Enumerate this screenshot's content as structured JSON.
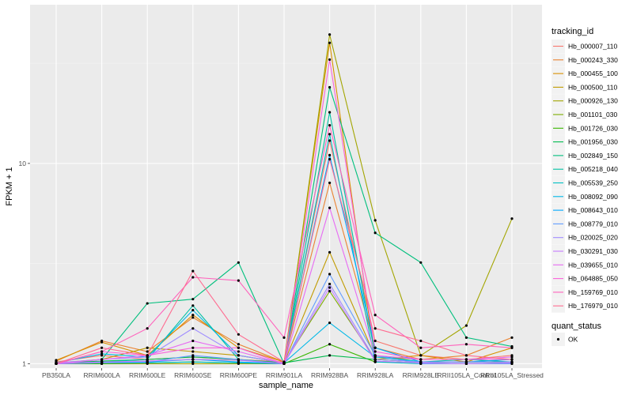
{
  "chart_data": {
    "type": "line",
    "xlabel": "sample_name",
    "ylabel": "FPKM + 1",
    "y_scale": "log10",
    "ylim": [
      0.95,
      62
    ],
    "y_ticks": [
      1,
      10
    ],
    "grid": true,
    "legend_position": "right",
    "categories": [
      "PB350LA",
      "RRIM600LA",
      "RRIM600LE",
      "RRIM600SE",
      "RRIM600PE",
      "RRIM901LA",
      "RRIM928BA",
      "RRIM928LA",
      "RRIM928LE",
      "RRII105LA_Control",
      "RRII105LA_Stressed"
    ],
    "legend_title": "tracking_id",
    "series": [
      {
        "name": "Hb_000007_110",
        "color": "#F8766D",
        "values": [
          1.02,
          1.1,
          1.05,
          1.08,
          1.05,
          1.02,
          13.0,
          1.3,
          1.1,
          1.05,
          1.1
        ]
      },
      {
        "name": "Hb_000243_330",
        "color": "#EA8331",
        "values": [
          1.03,
          1.3,
          1.15,
          1.7,
          1.25,
          1.02,
          8.0,
          1.2,
          1.05,
          1.1,
          1.35
        ]
      },
      {
        "name": "Hb_000455_100",
        "color": "#D89000",
        "values": [
          1.04,
          1.28,
          1.1,
          1.75,
          1.2,
          1.02,
          40.0,
          1.05,
          1.1,
          1.02,
          1.2
        ]
      },
      {
        "name": "Hb_000500_110",
        "color": "#C09B00",
        "values": [
          1.01,
          1.05,
          1.2,
          1.15,
          1.1,
          1.01,
          3.6,
          1.08,
          1.05,
          1.05,
          1.05
        ]
      },
      {
        "name": "Hb_000926_130",
        "color": "#A3A500",
        "values": [
          1.0,
          1.0,
          1.0,
          1.0,
          1.0,
          1.0,
          44.0,
          5.2,
          1.1,
          1.55,
          5.3
        ]
      },
      {
        "name": "Hb_001101_030",
        "color": "#7CAE00",
        "values": [
          1.01,
          1.02,
          1.03,
          1.05,
          1.04,
          1.01,
          2.3,
          1.05,
          1.02,
          1.02,
          1.02
        ]
      },
      {
        "name": "Hb_001726_030",
        "color": "#39B600",
        "values": [
          1.0,
          1.0,
          1.01,
          1.02,
          1.01,
          1.0,
          1.25,
          1.02,
          1.01,
          1.0,
          1.01
        ]
      },
      {
        "name": "Hb_001956_030",
        "color": "#00BB4E",
        "values": [
          1.01,
          1.03,
          1.05,
          1.08,
          1.05,
          1.01,
          1.1,
          1.05,
          1.02,
          1.02,
          1.02
        ]
      },
      {
        "name": "Hb_002849_150",
        "color": "#00BF7D",
        "values": [
          1.0,
          1.05,
          2.0,
          2.1,
          3.2,
          1.0,
          24.0,
          4.5,
          3.2,
          1.35,
          1.22
        ]
      },
      {
        "name": "Hb_005218_040",
        "color": "#00C1A3",
        "values": [
          1.0,
          1.02,
          1.05,
          1.95,
          1.05,
          1.0,
          18.0,
          1.1,
          1.02,
          1.05,
          1.02
        ]
      },
      {
        "name": "Hb_005539_250",
        "color": "#00BFC4",
        "values": [
          1.0,
          1.01,
          1.01,
          1.02,
          1.01,
          1.0,
          14.0,
          1.02,
          1.0,
          1.0,
          1.0
        ]
      },
      {
        "name": "Hb_008092_090",
        "color": "#00B8E7",
        "values": [
          1.01,
          1.12,
          1.08,
          1.85,
          1.1,
          1.01,
          1.6,
          1.08,
          1.02,
          1.02,
          1.05
        ]
      },
      {
        "name": "Hb_008643_010",
        "color": "#00A9FF",
        "values": [
          1.0,
          1.02,
          1.02,
          1.05,
          1.02,
          1.0,
          11.0,
          1.2,
          1.02,
          1.02,
          1.02
        ]
      },
      {
        "name": "Hb_008779_010",
        "color": "#619CFF",
        "values": [
          1.0,
          1.01,
          1.02,
          1.1,
          1.05,
          1.0,
          2.8,
          1.1,
          1.0,
          1.0,
          1.0
        ]
      },
      {
        "name": "Hb_020025_020",
        "color": "#9F8CFF",
        "values": [
          1.01,
          1.05,
          1.08,
          1.5,
          1.1,
          1.01,
          2.5,
          1.05,
          1.02,
          1.02,
          1.02
        ]
      },
      {
        "name": "Hb_030291_030",
        "color": "#C77CFF",
        "values": [
          1.0,
          1.02,
          1.03,
          1.05,
          1.04,
          1.0,
          2.4,
          1.03,
          1.01,
          1.0,
          1.01
        ]
      },
      {
        "name": "Hb_039655_010",
        "color": "#E76BF3",
        "values": [
          1.0,
          1.05,
          1.1,
          1.3,
          1.15,
          1.0,
          6.0,
          1.1,
          1.05,
          1.05,
          1.08
        ]
      },
      {
        "name": "Hb_064885_050",
        "color": "#FA62DB",
        "values": [
          1.0,
          1.15,
          1.1,
          1.2,
          1.2,
          1.0,
          33.0,
          1.15,
          1.05,
          1.05,
          1.05
        ]
      },
      {
        "name": "Hb_159769_010",
        "color": "#FF62BC",
        "values": [
          1.0,
          1.15,
          1.5,
          2.7,
          2.6,
          1.35,
          15.5,
          1.75,
          1.2,
          1.25,
          1.2
        ]
      },
      {
        "name": "Hb_176979_010",
        "color": "#FF6C91",
        "values": [
          1.0,
          1.2,
          1.1,
          2.9,
          1.4,
          1.02,
          10.5,
          1.5,
          1.3,
          1.1,
          1.05
        ]
      }
    ],
    "shape_legend_title": "quant_status",
    "shape_legend_items": [
      "OK"
    ]
  }
}
